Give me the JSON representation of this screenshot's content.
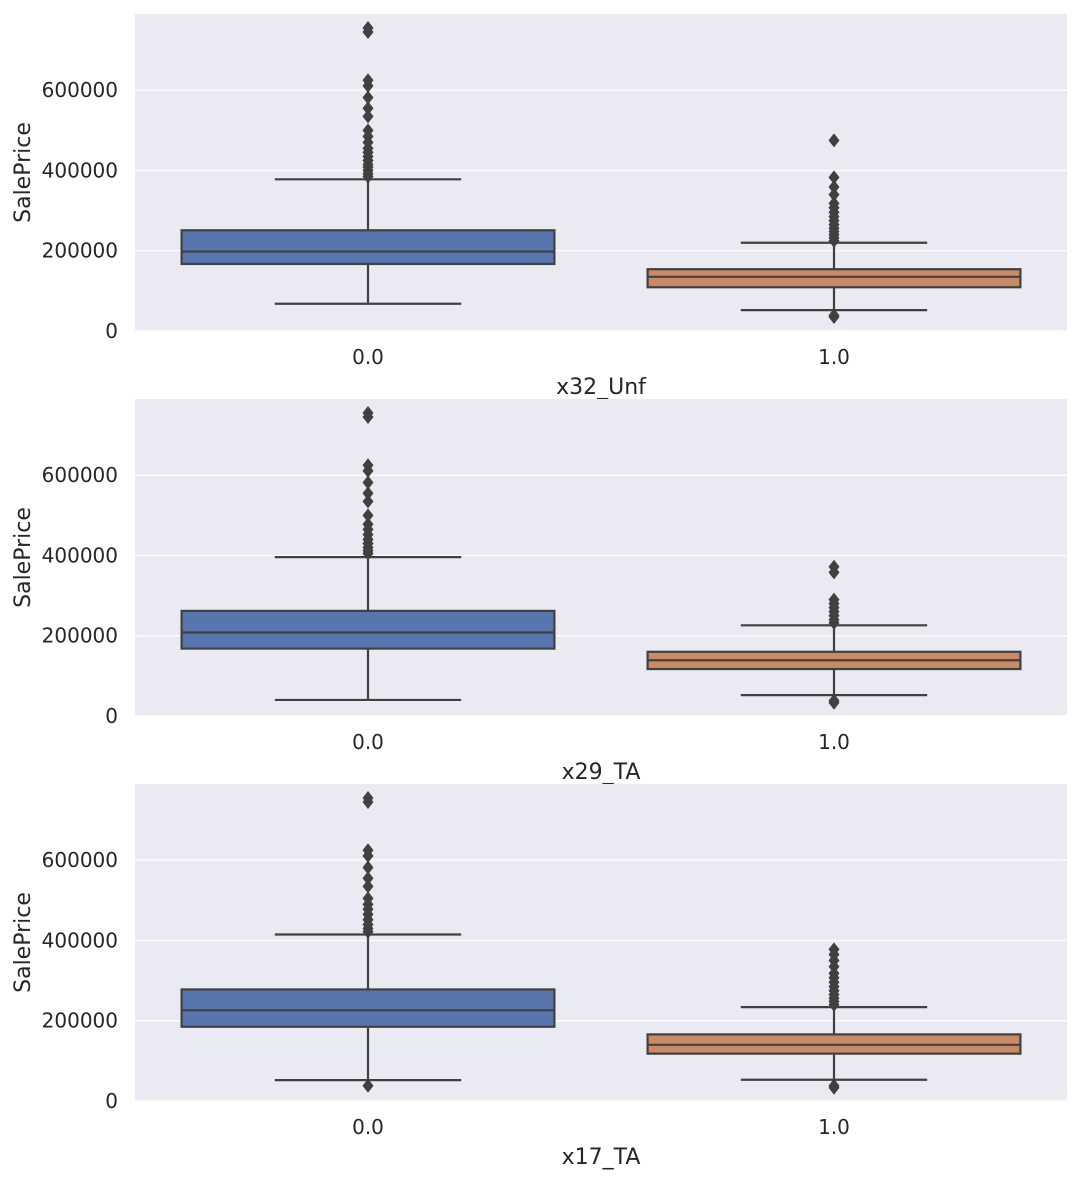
{
  "colors": {
    "panel_bg": "#EAEAF2",
    "grid": "#FFFFFF",
    "box_0": "#5875AE",
    "box_1": "#C98A65",
    "line": "#404040",
    "text": "#262626"
  },
  "chart_data": [
    {
      "type": "box",
      "xlabel": "x32_Unf",
      "ylabel": "SalePrice",
      "categories": [
        "0.0",
        "1.0"
      ],
      "yticks": [
        0,
        200000,
        400000,
        600000
      ],
      "ylim": [
        0,
        790000
      ],
      "grid": true,
      "boxes": [
        {
          "category": "0.0",
          "whisker_low": 68000,
          "q1": 167000,
          "median": 198000,
          "q3": 251000,
          "whisker_high": 378000,
          "outliers": [
            385000,
            392000,
            400000,
            408000,
            415000,
            425000,
            435000,
            445000,
            455000,
            470000,
            485000,
            500000,
            535000,
            555000,
            582000,
            611000,
            625000,
            745000,
            755000
          ]
        },
        {
          "category": "1.0",
          "whisker_low": 52000,
          "q1": 109000,
          "median": 135000,
          "q3": 154000,
          "whisker_high": 220000,
          "outliers": [
            35000,
            39000,
            225000,
            232000,
            240000,
            248000,
            256000,
            265000,
            275000,
            285000,
            296000,
            307000,
            318000,
            340000,
            359000,
            383000,
            475000
          ]
        }
      ]
    },
    {
      "type": "box",
      "xlabel": "x29_TA",
      "ylabel": "SalePrice",
      "categories": [
        "0.0",
        "1.0"
      ],
      "yticks": [
        0,
        200000,
        400000,
        600000
      ],
      "ylim": [
        0,
        790000
      ],
      "grid": true,
      "boxes": [
        {
          "category": "0.0",
          "whisker_low": 40000,
          "q1": 168000,
          "median": 208000,
          "q3": 262000,
          "whisker_high": 396000,
          "outliers": [
            405000,
            412000,
            420000,
            430000,
            440000,
            452000,
            465000,
            478000,
            500000,
            535000,
            555000,
            582000,
            611000,
            625000,
            745000,
            755000
          ]
        },
        {
          "category": "1.0",
          "whisker_low": 52000,
          "q1": 117000,
          "median": 139000,
          "q3": 160000,
          "whisker_high": 226000,
          "outliers": [
            33000,
            38000,
            232000,
            240000,
            250000,
            260000,
            270000,
            280000,
            290000,
            358000,
            372000
          ]
        }
      ]
    },
    {
      "type": "box",
      "xlabel": "x17_TA",
      "ylabel": "SalePrice",
      "categories": [
        "0.0",
        "1.0"
      ],
      "yticks": [
        0,
        200000,
        400000,
        600000
      ],
      "ylim": [
        0,
        790000
      ],
      "grid": true,
      "boxes": [
        {
          "category": "0.0",
          "whisker_low": 52000,
          "q1": 185000,
          "median": 226000,
          "q3": 278000,
          "whisker_high": 415000,
          "outliers": [
            38000,
            422000,
            430000,
            440000,
            452000,
            465000,
            478000,
            490000,
            505000,
            535000,
            555000,
            582000,
            611000,
            625000,
            745000,
            755000
          ]
        },
        {
          "category": "1.0",
          "whisker_low": 53000,
          "q1": 118000,
          "median": 140000,
          "q3": 166000,
          "whisker_high": 234000,
          "outliers": [
            33000,
            38000,
            240000,
            248000,
            256000,
            265000,
            275000,
            285000,
            296000,
            307000,
            318000,
            335000,
            350000,
            365000,
            378000
          ]
        }
      ]
    }
  ]
}
